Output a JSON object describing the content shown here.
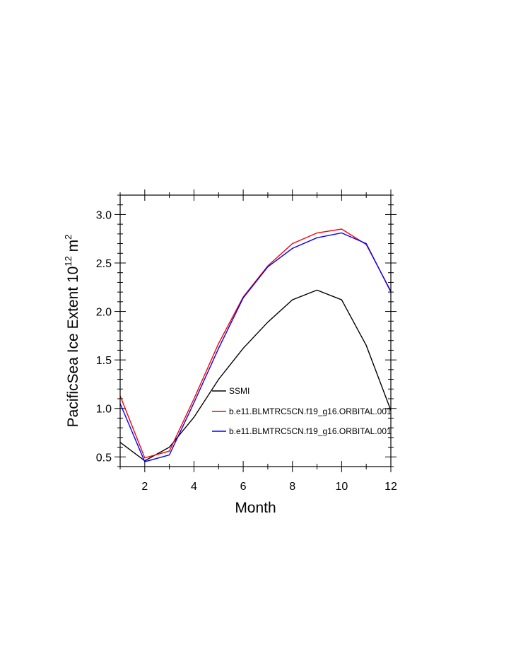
{
  "chart_data": {
    "type": "line",
    "xlabel": "Month",
    "ylabel_main": "PacificSea Ice Extent 10",
    "ylabel_exp": "12",
    "ylabel_unit": " m",
    "ylabel_unit_exp": "2",
    "xlim": [
      1,
      12
    ],
    "ylim": [
      0.4,
      3.2
    ],
    "x_ticks": [
      2,
      4,
      6,
      8,
      10,
      12
    ],
    "y_ticks": [
      0.5,
      1.0,
      1.5,
      2.0,
      2.5,
      3.0
    ],
    "x_tick_labels": [
      "2",
      "4",
      "6",
      "8",
      "10",
      "12"
    ],
    "y_tick_labels": [
      "0.5",
      "1.0",
      "1.5",
      "2.0",
      "2.5",
      "3.0"
    ],
    "legend_position": "center-right inside plot",
    "x": [
      1,
      2,
      3,
      4,
      5,
      6,
      7,
      8,
      9,
      10,
      11,
      12
    ],
    "series": [
      {
        "name": "SSMI",
        "color": "#000000",
        "values": [
          0.65,
          0.46,
          0.6,
          0.91,
          1.3,
          1.62,
          1.89,
          2.12,
          2.22,
          2.12,
          1.65,
          0.98
        ]
      },
      {
        "name": "b.e11.BLMTRC5CN.f19_g16.ORBITAL.001",
        "color": "#ff0000",
        "values": [
          1.13,
          0.49,
          0.56,
          1.1,
          1.67,
          2.15,
          2.47,
          2.7,
          2.81,
          2.85,
          2.69,
          2.21
        ]
      },
      {
        "name": "b.e11.BLMTRC5CN.f19_g16.ORBITAL.001",
        "color": "#0000ff",
        "values": [
          1.05,
          0.45,
          0.52,
          1.06,
          1.62,
          2.14,
          2.46,
          2.65,
          2.76,
          2.81,
          2.7,
          2.2
        ]
      }
    ]
  }
}
